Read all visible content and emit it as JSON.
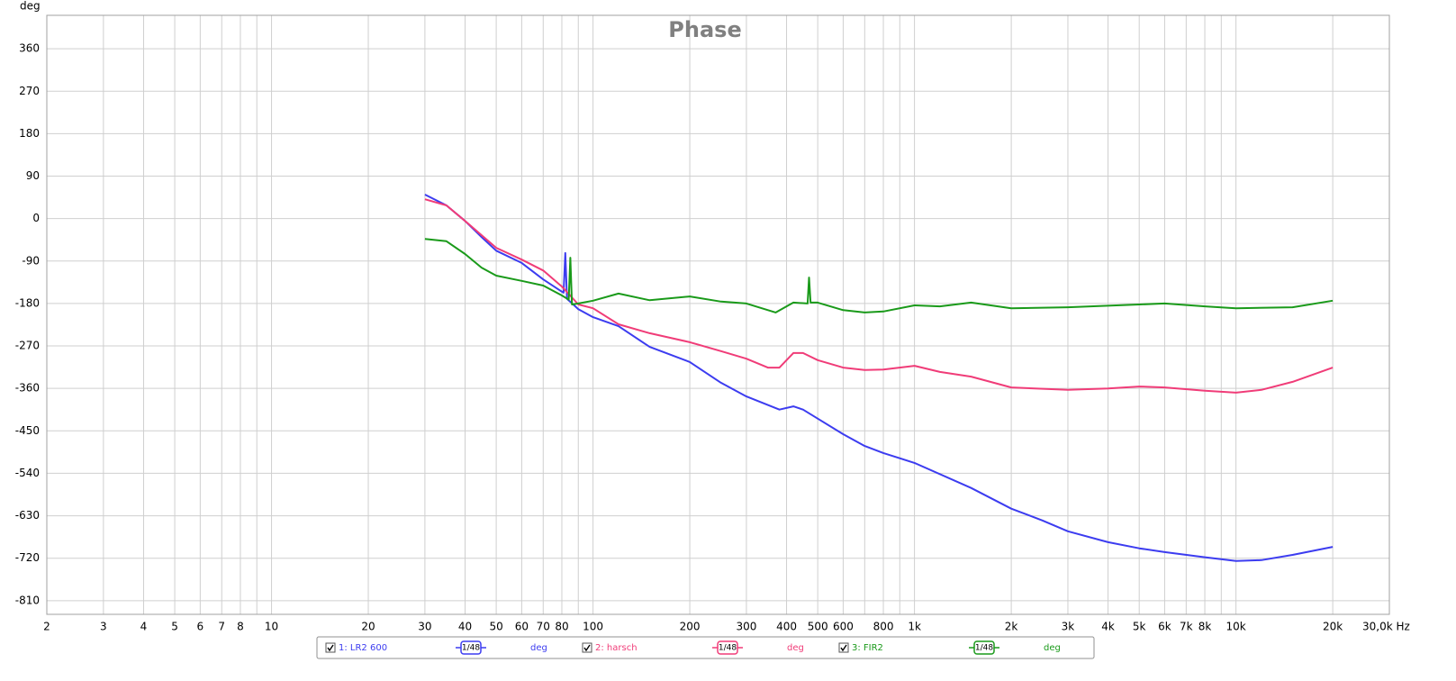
{
  "chart_data": {
    "type": "line",
    "title": "Phase",
    "y_label": "deg",
    "xlog": true,
    "grid": true,
    "xlim": [
      2,
      30000
    ],
    "ylim": [
      -839,
      431
    ],
    "xticks": [
      2,
      3,
      4,
      5,
      6,
      7,
      8,
      10,
      20,
      30,
      40,
      50,
      60,
      70,
      80,
      100,
      200,
      300,
      400,
      500,
      600,
      800,
      {
        "value": 1000,
        "label": "1k"
      },
      {
        "value": 2000,
        "label": "2k"
      },
      {
        "value": 3000,
        "label": "3k"
      },
      {
        "value": 4000,
        "label": "4k"
      },
      {
        "value": 5000,
        "label": "5k"
      },
      {
        "value": 6000,
        "label": "6k"
      },
      {
        "value": 7000,
        "label": "7k"
      },
      {
        "value": 8000,
        "label": "8k"
      },
      {
        "value": 10000,
        "label": "10k"
      },
      {
        "value": 20000,
        "label": "20k"
      },
      {
        "value": 30000,
        "label": "30,0k Hz"
      }
    ],
    "xminor": [
      9,
      90,
      700,
      900,
      9000
    ],
    "yticks": [
      360,
      270,
      180,
      90,
      0,
      -90,
      -180,
      -270,
      -360,
      -450,
      -540,
      -630,
      -720,
      -810
    ],
    "series": [
      {
        "name": "1: LR2 600",
        "color": "#3c3cf0",
        "smoothing": "1/48",
        "unit": "deg",
        "x": [
          30,
          35,
          40,
          45,
          50,
          60,
          70,
          80,
          81,
          82,
          83,
          90,
          100,
          120,
          150,
          200,
          250,
          300,
          380,
          420,
          450,
          500,
          600,
          700,
          800,
          1000,
          1500,
          2000,
          2500,
          3000,
          4000,
          5000,
          6000,
          8000,
          10000,
          12000,
          15000,
          20000
        ],
        "values": [
          51,
          28,
          -5,
          -39,
          -68,
          -94,
          -129,
          -155,
          -157,
          -73,
          -170,
          -192,
          -209,
          -228,
          -272,
          -304,
          -348,
          -377,
          -405,
          -398,
          -405,
          -424,
          -457,
          -482,
          -497,
          -518,
          -571,
          -615,
          -640,
          -663,
          -686,
          -699,
          -707,
          -718,
          -726,
          -724,
          -713,
          -696
        ]
      },
      {
        "name": "2: harsch",
        "color": "#f03c78",
        "smoothing": "1/48",
        "unit": "deg",
        "x": [
          30,
          35,
          40,
          50,
          60,
          70,
          80,
          90,
          100,
          120,
          150,
          200,
          250,
          300,
          350,
          380,
          420,
          450,
          500,
          600,
          700,
          800,
          1000,
          1200,
          1500,
          2000,
          3000,
          4000,
          5000,
          6000,
          8000,
          10000,
          12000,
          15000,
          20000
        ],
        "values": [
          41,
          28,
          -5,
          -62,
          -87,
          -110,
          -144,
          -182,
          -190,
          -224,
          -243,
          -262,
          -281,
          -297,
          -316,
          -316,
          -285,
          -285,
          -300,
          -316,
          -321,
          -320,
          -312,
          -325,
          -335,
          -358,
          -363,
          -360,
          -356,
          -358,
          -365,
          -369,
          -363,
          -346,
          -316
        ]
      },
      {
        "name": "3: FIR2",
        "color": "#1a9a1a",
        "smoothing": "1/48",
        "unit": "deg",
        "x": [
          30,
          35,
          40,
          45,
          50,
          60,
          70,
          80,
          84,
          85,
          86,
          90,
          100,
          120,
          150,
          200,
          250,
          300,
          370,
          420,
          465,
          470,
          475,
          500,
          600,
          700,
          800,
          1000,
          1200,
          1500,
          2000,
          3000,
          5000,
          6000,
          8000,
          10000,
          15000,
          20000
        ],
        "values": [
          -43,
          -48,
          -75,
          -104,
          -121,
          -132,
          -142,
          -163,
          -172,
          -83,
          -182,
          -180,
          -174,
          -159,
          -173,
          -165,
          -176,
          -180,
          -199,
          -178,
          -180,
          -125,
          -178,
          -178,
          -194,
          -199,
          -197,
          -184,
          -186,
          -178,
          -190,
          -188,
          -182,
          -180,
          -186,
          -190,
          -188,
          -174
        ]
      }
    ]
  }
}
